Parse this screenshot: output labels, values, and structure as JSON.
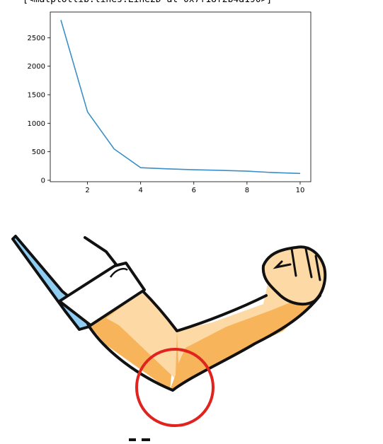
{
  "output": {
    "repr_text": "[<matplotlib.lines.Line2D at 0x7f18f2b4a190>]"
  },
  "chart_data": {
    "type": "line",
    "title": "",
    "xlabel": "",
    "ylabel": "",
    "x": [
      1,
      2,
      3,
      4,
      5,
      6,
      7,
      8,
      9,
      10
    ],
    "y": [
      2810,
      1200,
      550,
      220,
      200,
      185,
      175,
      160,
      135,
      120
    ],
    "xlim": [
      0.6,
      10.4
    ],
    "ylim": [
      -25,
      2950
    ],
    "xticks": [
      2,
      4,
      6,
      8,
      10
    ],
    "yticks": [
      0,
      500,
      1000,
      1500,
      2000,
      2500
    ],
    "line_color": "#3a8fc7",
    "grid": false
  },
  "illustration": {
    "skin_light": "#fcd9a5",
    "skin_shadow": "#f7b45a",
    "sleeve_color": "#8fcdf2",
    "cuff_color": "#ffffff",
    "circle_color": "#e0231e"
  }
}
